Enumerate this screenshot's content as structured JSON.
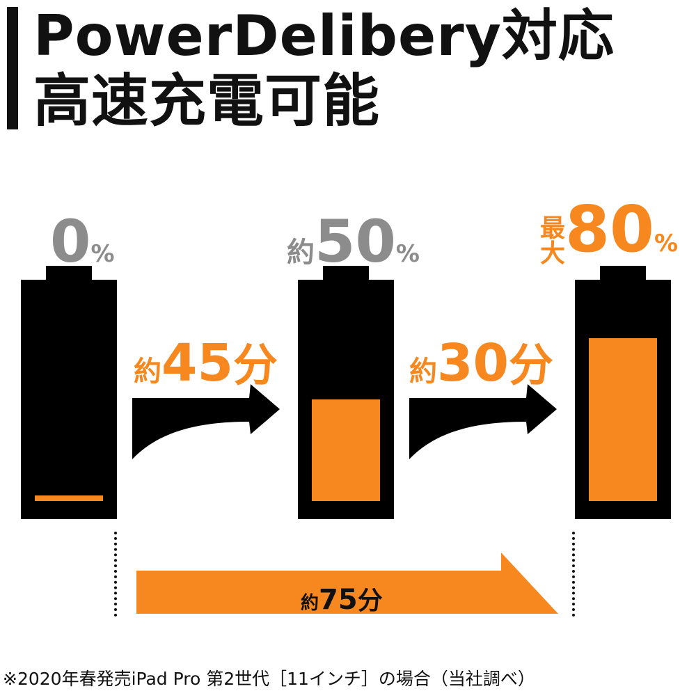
{
  "title": {
    "line1": "PowerDelibery対応",
    "line2": "高速充電可能"
  },
  "batteries": [
    {
      "label_prefix": "",
      "value": "0",
      "unit": "%",
      "charge_level": 0.06
    },
    {
      "label_prefix": "約",
      "value": "50",
      "unit": "%",
      "charge_level": 0.5
    },
    {
      "label_prefix_top": "最",
      "label_prefix_bottom": "大",
      "value": "80",
      "unit": "%",
      "charge_level": 0.8
    }
  ],
  "steps": [
    {
      "prefix": "約",
      "value": "45",
      "unit": "分"
    },
    {
      "prefix": "約",
      "value": "30",
      "unit": "分"
    }
  ],
  "total": {
    "prefix": "約",
    "value": "75",
    "unit": "分"
  },
  "footnote": "※2020年春発売iPad Pro 第2世代［11インチ］の場合（当社調べ）",
  "colors": {
    "accent": "#f7881f",
    "dark": "#000000",
    "gray": "#8c8c8c"
  }
}
